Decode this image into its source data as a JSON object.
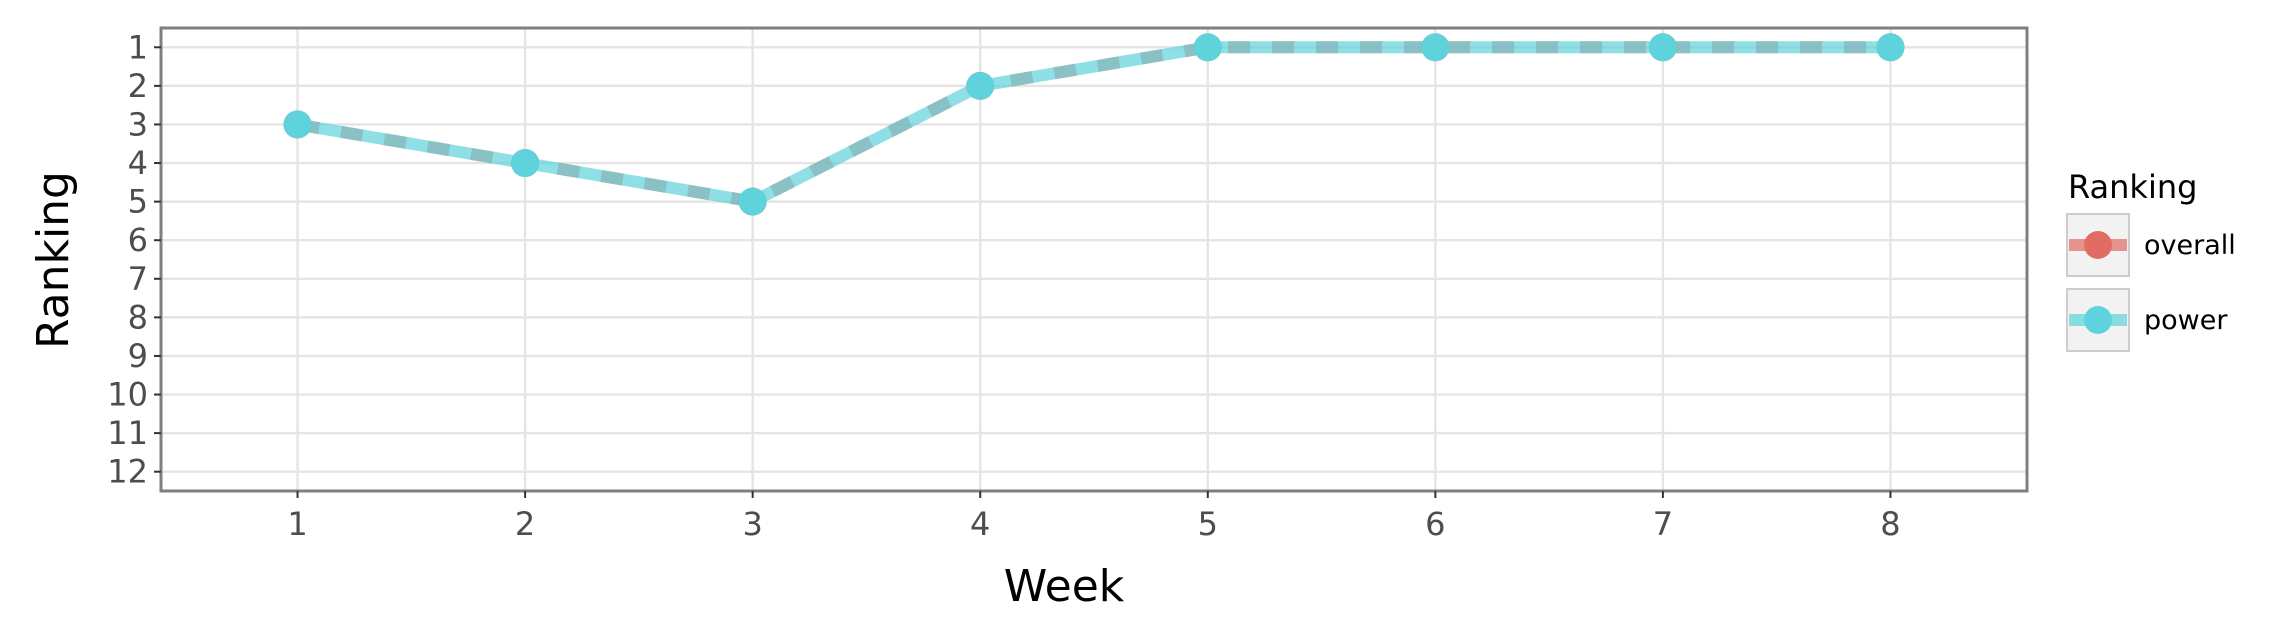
{
  "chart_data": {
    "type": "line",
    "xlabel": "Week",
    "ylabel": "Ranking",
    "x": [
      1,
      2,
      3,
      4,
      5,
      6,
      7,
      8
    ],
    "xlim": [
      0.4,
      8.6
    ],
    "ylim": [
      12.5,
      0.5
    ],
    "y_reversed": true,
    "x_ticks": [
      "1",
      "2",
      "3",
      "4",
      "5",
      "6",
      "7",
      "8"
    ],
    "y_ticks": [
      "1",
      "2",
      "3",
      "4",
      "5",
      "6",
      "7",
      "8",
      "9",
      "10",
      "11",
      "12"
    ],
    "grid": true,
    "legend": {
      "title": "Ranking",
      "position": "right"
    },
    "series": [
      {
        "name": "overall",
        "values": [
          3,
          4,
          5,
          2,
          1,
          1,
          1,
          1
        ],
        "color": "#e06c63",
        "line_style": "dashed"
      },
      {
        "name": "power",
        "values": [
          3,
          4,
          5,
          2,
          1,
          1,
          1,
          1
        ],
        "color": "#5fd3dc",
        "line_style": "solid"
      }
    ]
  }
}
